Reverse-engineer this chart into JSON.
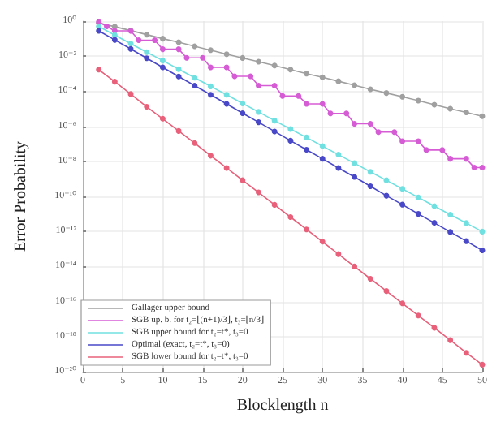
{
  "chart_data": {
    "type": "line",
    "xlabel": "Blocklength n",
    "ylabel": "Error Probability",
    "log": "y",
    "grid": true,
    "legend": "bottom left",
    "marker": "circle",
    "xlim": [
      0,
      50
    ],
    "xticks": [
      0,
      5,
      10,
      15,
      20,
      25,
      30,
      35,
      40,
      45,
      50
    ],
    "ylim": [
      1e-20,
      1
    ],
    "yticks": [
      {
        "value": 1,
        "label": "10⁰"
      },
      {
        "value": 0.01,
        "label": "10⁻²"
      },
      {
        "value": 0.0001,
        "label": "10⁻⁴"
      },
      {
        "value": 1e-06,
        "label": "10⁻⁶"
      },
      {
        "value": 1e-08,
        "label": "10⁻⁸"
      },
      {
        "value": 1e-10,
        "label": "10⁻¹⁰"
      },
      {
        "value": 1e-12,
        "label": "10⁻¹²"
      },
      {
        "value": 1e-14,
        "label": "10⁻¹⁴"
      },
      {
        "value": 1e-16,
        "label": "10⁻¹⁶"
      },
      {
        "value": 1e-18,
        "label": "10⁻¹⁸"
      },
      {
        "value": 1e-20,
        "label": "10⁻²⁰"
      }
    ],
    "series": [
      {
        "name": "Gallager upper bound",
        "color": "#a0a0a0",
        "x": [
          2,
          4,
          6,
          8,
          10,
          12,
          14,
          16,
          18,
          20,
          22,
          24,
          26,
          28,
          30,
          32,
          34,
          36,
          38,
          40,
          42,
          44,
          46,
          48,
          50
        ],
        "values": [
          0.79,
          0.48,
          0.29,
          0.17,
          0.1,
          0.062,
          0.037,
          0.022,
          0.013,
          0.0079,
          0.0048,
          0.0029,
          0.0017,
          0.001,
          0.00062,
          0.00037,
          0.00022,
          0.00013,
          7.9e-05,
          4.8e-05,
          2.9e-05,
          1.7e-05,
          1e-05,
          6.2e-06,
          3.7e-06
        ]
      },
      {
        "name": "SGB up. b. for t₂=⌊(n+1)/3⌋, t₃=⌊n/3⌋",
        "color": "#d65cd6",
        "x": [
          2,
          3,
          4,
          6,
          7,
          9,
          10,
          12,
          13,
          15,
          16,
          18,
          19,
          21,
          22,
          24,
          25,
          27,
          28,
          30,
          31,
          33,
          34,
          36,
          37,
          39,
          40,
          42,
          43,
          45,
          46,
          48,
          49,
          50
        ],
        "values": [
          0.9,
          0.5,
          0.28,
          0.28,
          0.081,
          0.081,
          0.025,
          0.025,
          0.0081,
          0.0081,
          0.0023,
          0.0023,
          0.00071,
          0.00071,
          0.00021,
          0.00021,
          5.4e-05,
          5.4e-05,
          1.9e-05,
          1.9e-05,
          5.4e-06,
          5.4e-06,
          1.4e-06,
          1.4e-06,
          4.7e-07,
          4.7e-07,
          1.4e-07,
          1.4e-07,
          4.4e-08,
          4.4e-08,
          1.4e-08,
          1.4e-08,
          4.4e-09,
          4.4e-09
        ]
      },
      {
        "name": "SGB upper bound for t₂=t*, t₃=0",
        "color": "#70e0e0",
        "x": [
          2,
          4,
          6,
          8,
          10,
          12,
          14,
          16,
          18,
          20,
          22,
          24,
          26,
          28,
          30,
          32,
          34,
          36,
          38,
          40,
          42,
          44,
          46,
          48,
          50
        ],
        "values": [
          0.5,
          0.16,
          0.052,
          0.017,
          0.0056,
          0.0018,
          0.00059,
          0.00019,
          6.3e-05,
          2e-05,
          6.6e-06,
          2.1e-06,
          6.9e-07,
          2.3e-07,
          7.4e-08,
          2.4e-08,
          7.8e-09,
          2.5e-09,
          8.3e-10,
          2.7e-10,
          8.7e-11,
          2.8e-11,
          9.1e-12,
          3e-12,
          9.8e-13
        ]
      },
      {
        "name": "Optimal (exact, t₂=t*, t₃=0)",
        "color": "#4848c8",
        "x": [
          2,
          4,
          6,
          8,
          10,
          12,
          14,
          16,
          18,
          20,
          22,
          24,
          26,
          28,
          30,
          32,
          34,
          36,
          38,
          40,
          42,
          44,
          46,
          48,
          50
        ],
        "values": [
          0.28,
          0.085,
          0.026,
          0.0076,
          0.0023,
          0.00069,
          0.00021,
          6.3e-05,
          1.9e-05,
          5.6e-06,
          1.7e-06,
          5.1e-07,
          1.5e-07,
          4.6e-08,
          1.4e-08,
          4.2e-09,
          1.3e-09,
          3.8e-10,
          1.1e-10,
          3.4e-11,
          1e-11,
          3.1e-12,
          9.3e-13,
          2.8e-13,
          8.3e-14
        ]
      },
      {
        "name": "SGB lower bound for t₂=t*, t₃=0",
        "color": "#e8607a",
        "x": [
          2,
          4,
          6,
          8,
          10,
          12,
          14,
          16,
          18,
          20,
          22,
          24,
          26,
          28,
          30,
          32,
          34,
          36,
          38,
          40,
          42,
          44,
          46,
          48,
          50
        ],
        "values": [
          0.0017,
          0.00035,
          6.9e-05,
          1.3e-05,
          2.7e-06,
          5.4e-07,
          1.1e-07,
          2.1e-08,
          4.2e-09,
          8.3e-10,
          1.7e-10,
          3.3e-11,
          6.6e-12,
          1.3e-12,
          2.6e-13,
          5.1e-14,
          1e-14,
          2e-15,
          4e-16,
          7.9e-17,
          1.6e-17,
          3.2e-18,
          6.3e-19,
          1.2e-19,
          2.5e-20
        ]
      }
    ]
  }
}
